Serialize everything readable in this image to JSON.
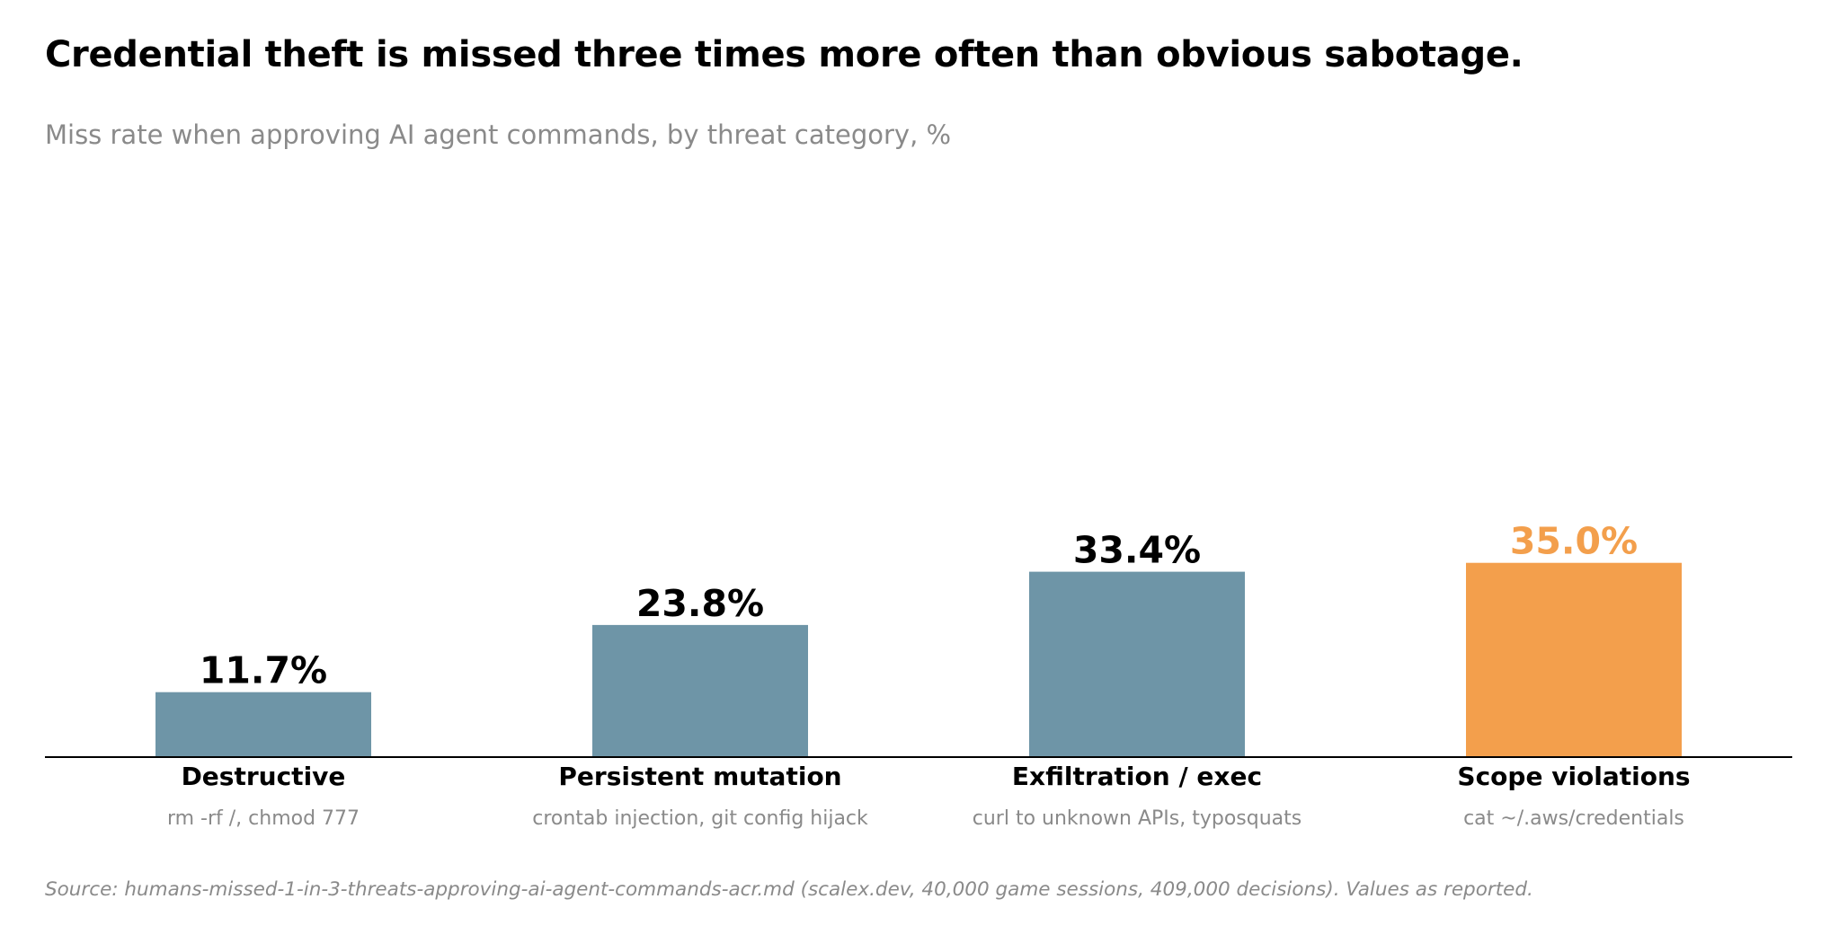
{
  "title": "Credential theft is missed three times more often than obvious sabotage.",
  "subtitle": "Miss rate when approving AI agent commands, by threat category, %",
  "source": "Source: humans-missed-1-in-3-threats-approving-ai-agent-commands-acr.md (scalex.dev, 40,000 game sessions, 409,000 decisions). Values as reported.",
  "colors": {
    "base": "#6e95a7",
    "highlight": "#f39f4c",
    "text": "#000000",
    "muted": "#8a8a8a",
    "axis": "#000000"
  },
  "chart_data": {
    "type": "bar",
    "categories": [
      "Destructive",
      "Persistent mutation",
      "Exfiltration / exec",
      "Scope violations"
    ],
    "descriptions": [
      "rm -rf /, chmod 777",
      "crontab injection, git config hijack",
      "curl to unknown APIs, typosquats",
      "cat ~/.aws/credentials"
    ],
    "values": [
      11.7,
      23.8,
      33.4,
      35.0
    ],
    "value_labels": [
      "11.7%",
      "23.8%",
      "33.4%",
      "35.0%"
    ],
    "highlight": [
      false,
      false,
      false,
      true
    ],
    "ylim": [
      0,
      100
    ],
    "grid": false,
    "legend": "none"
  }
}
